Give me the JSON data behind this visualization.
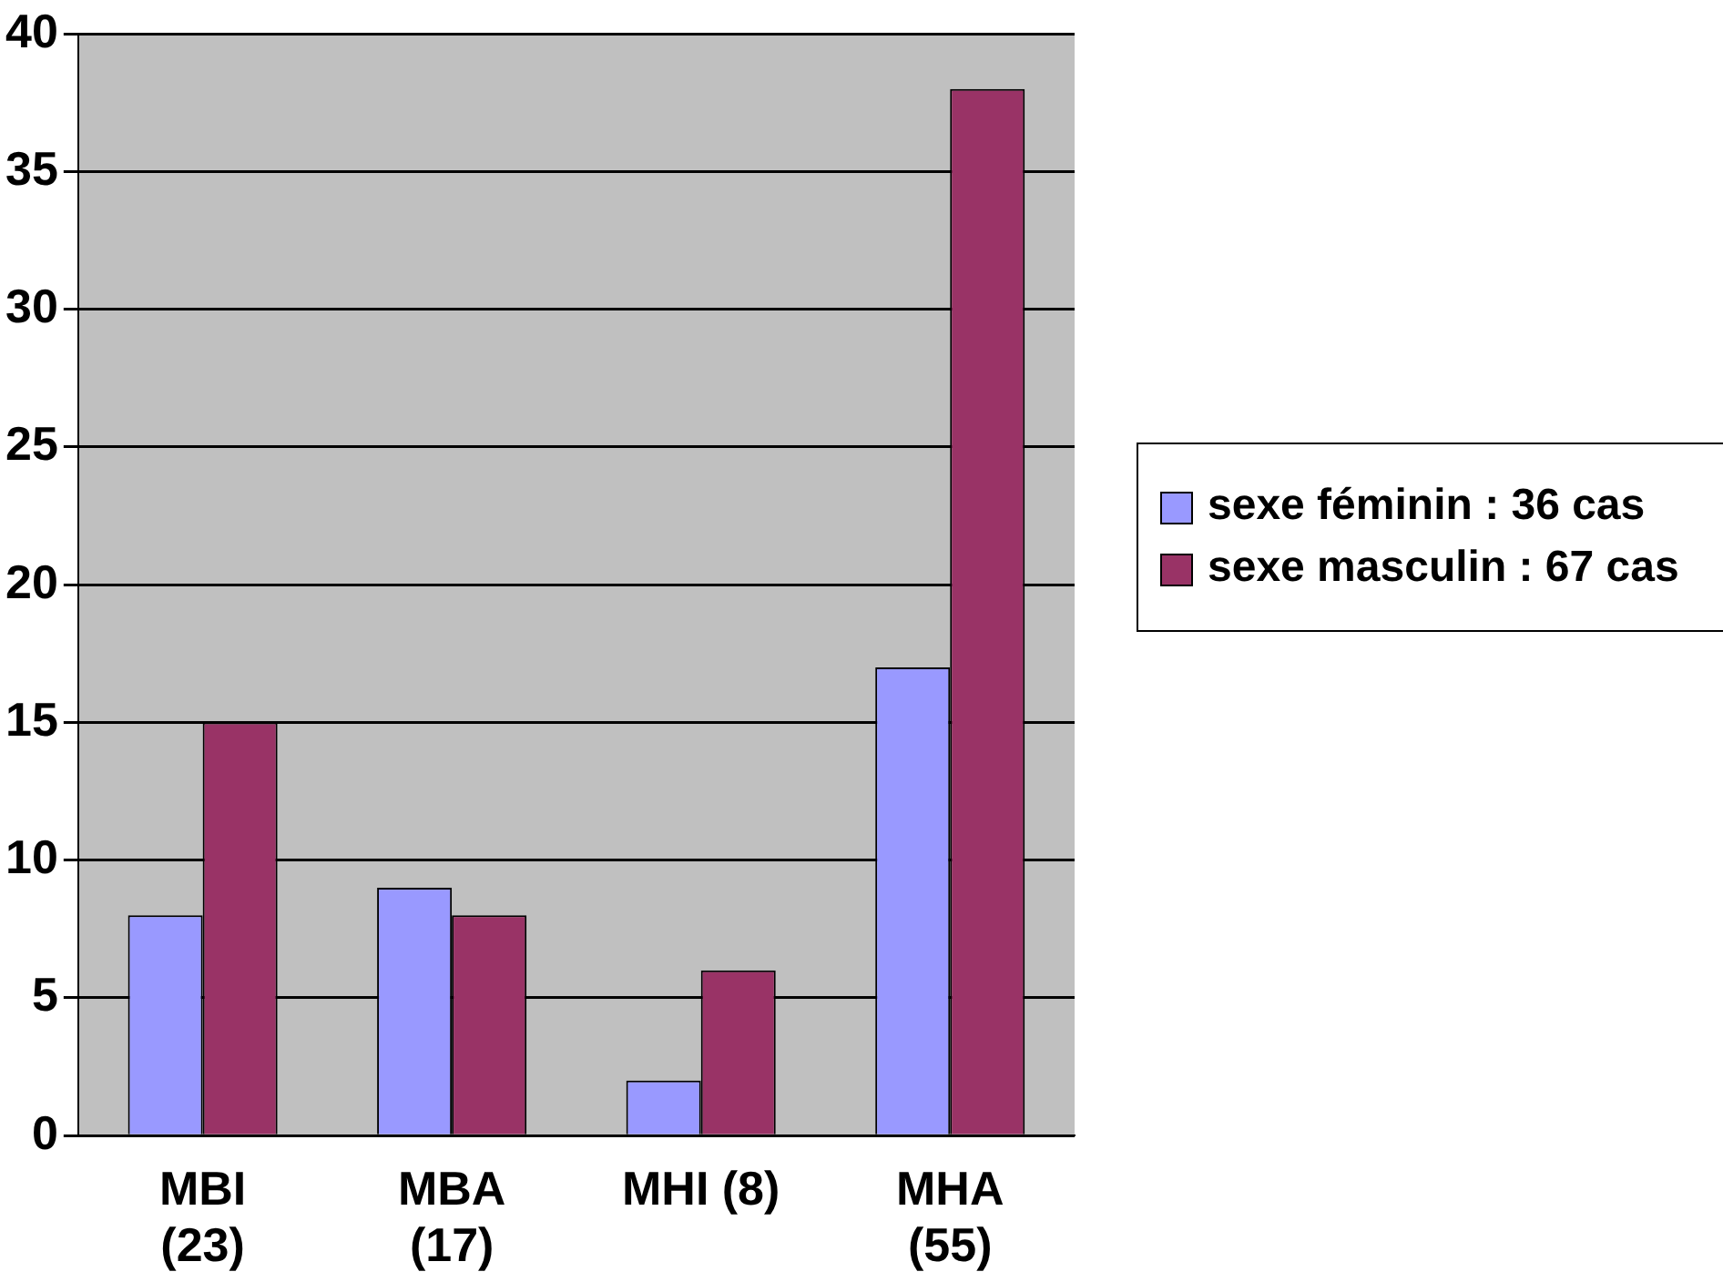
{
  "chart_data": {
    "type": "bar",
    "categories": [
      "MBI (23)",
      "MBA (17)",
      "MHI (8)",
      "MHA (55)"
    ],
    "series": [
      {
        "name": "sexe féminin : 36 cas",
        "color": "#9999ff",
        "values": [
          8,
          9,
          2,
          17
        ]
      },
      {
        "name": "sexe masculin : 67 cas",
        "color": "#993366",
        "values": [
          15,
          8,
          6,
          38
        ]
      }
    ],
    "ylim": [
      0,
      40
    ],
    "yticks": [
      0,
      5,
      10,
      15,
      20,
      25,
      30,
      35,
      40
    ],
    "grid": "y",
    "legend": "right"
  }
}
